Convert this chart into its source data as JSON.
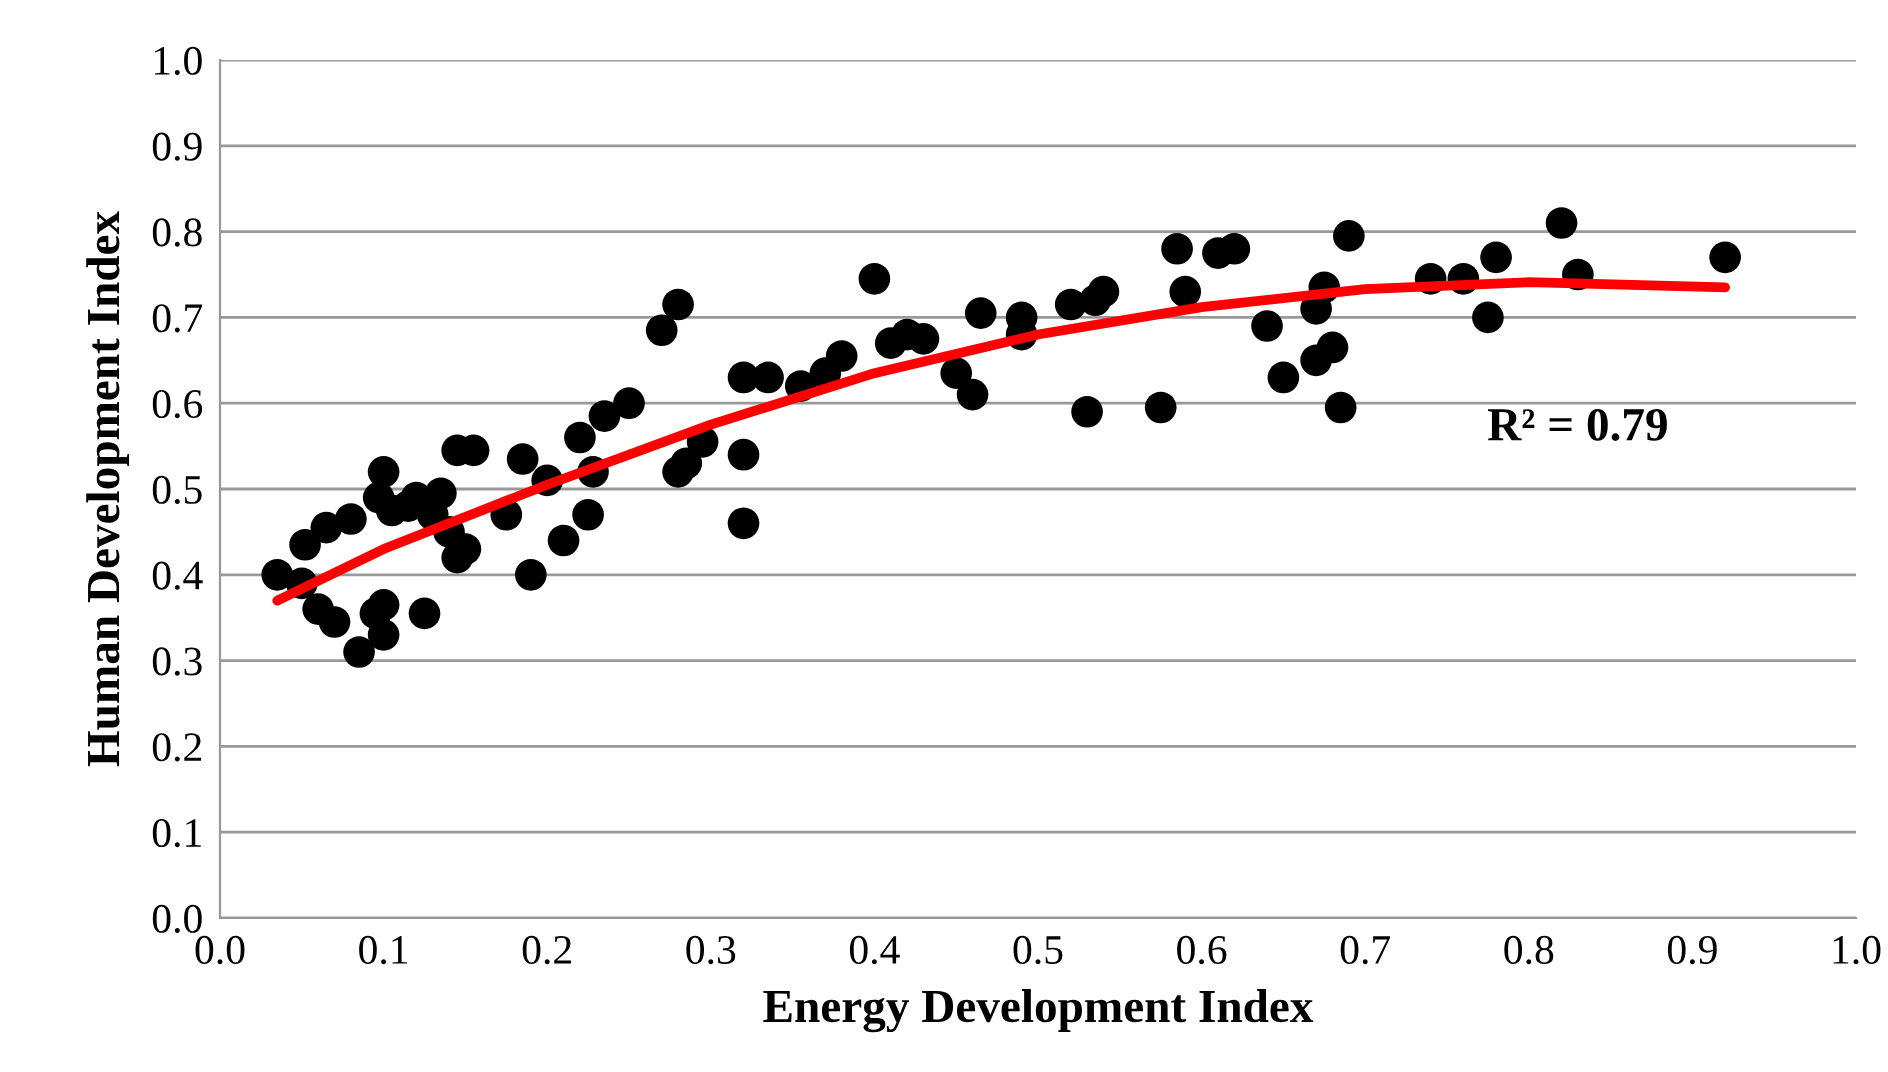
{
  "chart_data": {
    "type": "scatter",
    "xlabel": "Energy Development Index",
    "ylabel": "Human Development Index",
    "xlim": [
      0,
      1
    ],
    "ylim": [
      0,
      1
    ],
    "xticks": [
      {
        "value": 0,
        "label": "0.0"
      },
      0.1,
      0.2,
      0.3,
      0.4,
      0.5,
      0.6,
      0.7,
      0.8,
      0.9,
      {
        "value": 1,
        "label": "1.0"
      }
    ],
    "yticks": [
      {
        "value": 0,
        "label": "0.0"
      },
      0.1,
      0.2,
      0.3,
      0.4,
      0.5,
      0.6,
      0.7,
      0.8,
      0.9,
      {
        "value": 1,
        "label": "1.0"
      }
    ],
    "grid": "y",
    "marker": "circle",
    "legend": false,
    "series": [
      {
        "color": "#000000",
        "x": [
          0.035,
          0.05,
          0.052,
          0.06,
          0.065,
          0.07,
          0.08,
          0.085,
          0.095,
          0.097,
          0.1,
          0.1,
          0.1,
          0.105,
          0.115,
          0.12,
          0.125,
          0.13,
          0.135,
          0.14,
          0.145,
          0.145,
          0.15,
          0.155,
          0.175,
          0.185,
          0.19,
          0.2,
          0.21,
          0.22,
          0.225,
          0.228,
          0.235,
          0.25,
          0.27,
          0.28,
          0.28,
          0.285,
          0.295,
          0.32,
          0.32,
          0.32,
          0.335,
          0.355,
          0.37,
          0.38,
          0.4,
          0.41,
          0.42,
          0.43,
          0.45,
          0.46,
          0.465,
          0.49,
          0.49,
          0.52,
          0.53,
          0.535,
          0.54,
          0.575,
          0.585,
          0.59,
          0.61,
          0.62,
          0.64,
          0.65,
          0.67,
          0.67,
          0.675,
          0.68,
          0.685,
          0.69,
          0.74,
          0.76,
          0.775,
          0.78,
          0.82,
          0.83,
          0.92
        ],
        "values": [
          0.4,
          0.39,
          0.435,
          0.36,
          0.455,
          0.345,
          0.465,
          0.31,
          0.355,
          0.49,
          0.52,
          0.33,
          0.365,
          0.475,
          0.48,
          0.49,
          0.355,
          0.47,
          0.495,
          0.45,
          0.42,
          0.545,
          0.43,
          0.545,
          0.47,
          0.535,
          0.4,
          0.51,
          0.44,
          0.56,
          0.47,
          0.52,
          0.585,
          0.6,
          0.685,
          0.715,
          0.52,
          0.53,
          0.555,
          0.63,
          0.54,
          0.46,
          0.63,
          0.62,
          0.635,
          0.655,
          0.745,
          0.67,
          0.68,
          0.675,
          0.635,
          0.61,
          0.705,
          0.7,
          0.68,
          0.715,
          0.59,
          0.72,
          0.73,
          0.595,
          0.78,
          0.73,
          0.775,
          0.78,
          0.69,
          0.63,
          0.71,
          0.65,
          0.735,
          0.665,
          0.595,
          0.795,
          0.745,
          0.745,
          0.7,
          0.77,
          0.81,
          0.75,
          0.77
        ]
      },
      {
        "type": "line",
        "color": "#ff0000",
        "marker": "none",
        "x": [
          0.035,
          0.1,
          0.2,
          0.3,
          0.4,
          0.5,
          0.6,
          0.7,
          0.8,
          0.92
        ],
        "values": [
          0.37,
          0.43,
          0.505,
          0.575,
          0.635,
          0.68,
          0.712,
          0.733,
          0.741,
          0.735
        ]
      }
    ],
    "annotations": [
      "R² = 0.79"
    ]
  }
}
